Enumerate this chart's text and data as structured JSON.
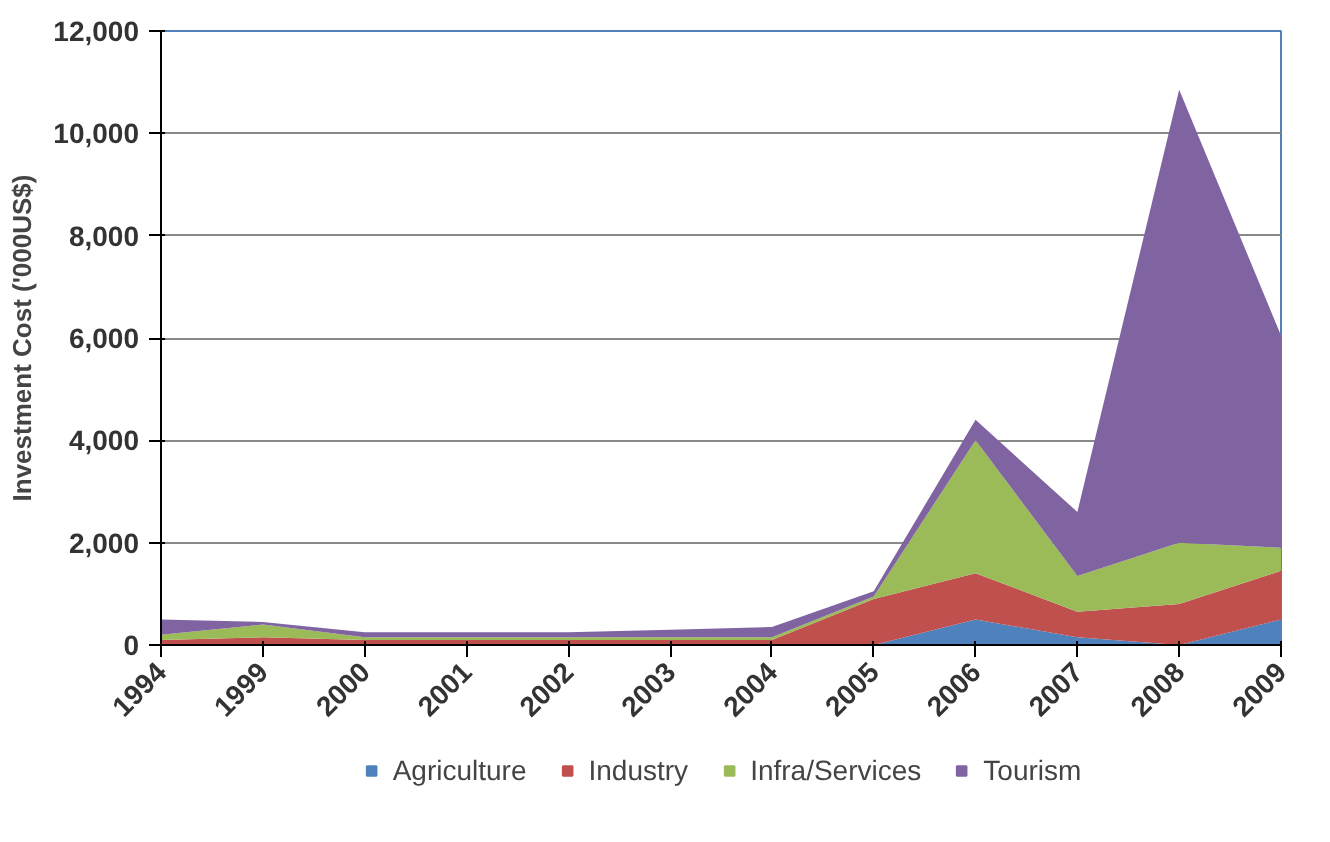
{
  "chart_data": {
    "type": "area",
    "stacked": true,
    "ylabel": "Investment Cost ('000US$)",
    "categories": [
      "1994",
      "1999",
      "2000",
      "2001",
      "2002",
      "2003",
      "2004",
      "2005",
      "2006",
      "2007",
      "2008",
      "2009"
    ],
    "series": [
      {
        "name": "Agriculture",
        "color": "#4f81bd",
        "values": [
          0,
          0,
          0,
          0,
          0,
          0,
          0,
          0,
          500,
          150,
          0,
          500
        ]
      },
      {
        "name": "Industry",
        "color": "#c0504d",
        "values": [
          100,
          150,
          100,
          100,
          100,
          100,
          100,
          900,
          900,
          500,
          800,
          950
        ]
      },
      {
        "name": "Infra/Services",
        "color": "#9bbb59",
        "values": [
          100,
          250,
          50,
          50,
          50,
          50,
          50,
          50,
          2600,
          700,
          1200,
          450
        ]
      },
      {
        "name": "Tourism",
        "color": "#8064a2",
        "values": [
          300,
          50,
          100,
          100,
          100,
          150,
          200,
          100,
          400,
          1250,
          8850,
          4150
        ]
      }
    ],
    "ylim": [
      0,
      12000
    ],
    "yticks": [
      {
        "value": 0,
        "label": "0"
      },
      {
        "value": 2000,
        "label": "2,000"
      },
      {
        "value": 4000,
        "label": "4,000"
      },
      {
        "value": 6000,
        "label": "6,000"
      },
      {
        "value": 8000,
        "label": "8,000"
      },
      {
        "value": 10000,
        "label": "10,000"
      },
      {
        "value": 12000,
        "label": "12,000"
      }
    ],
    "grid": "y",
    "legend": "bottom"
  }
}
